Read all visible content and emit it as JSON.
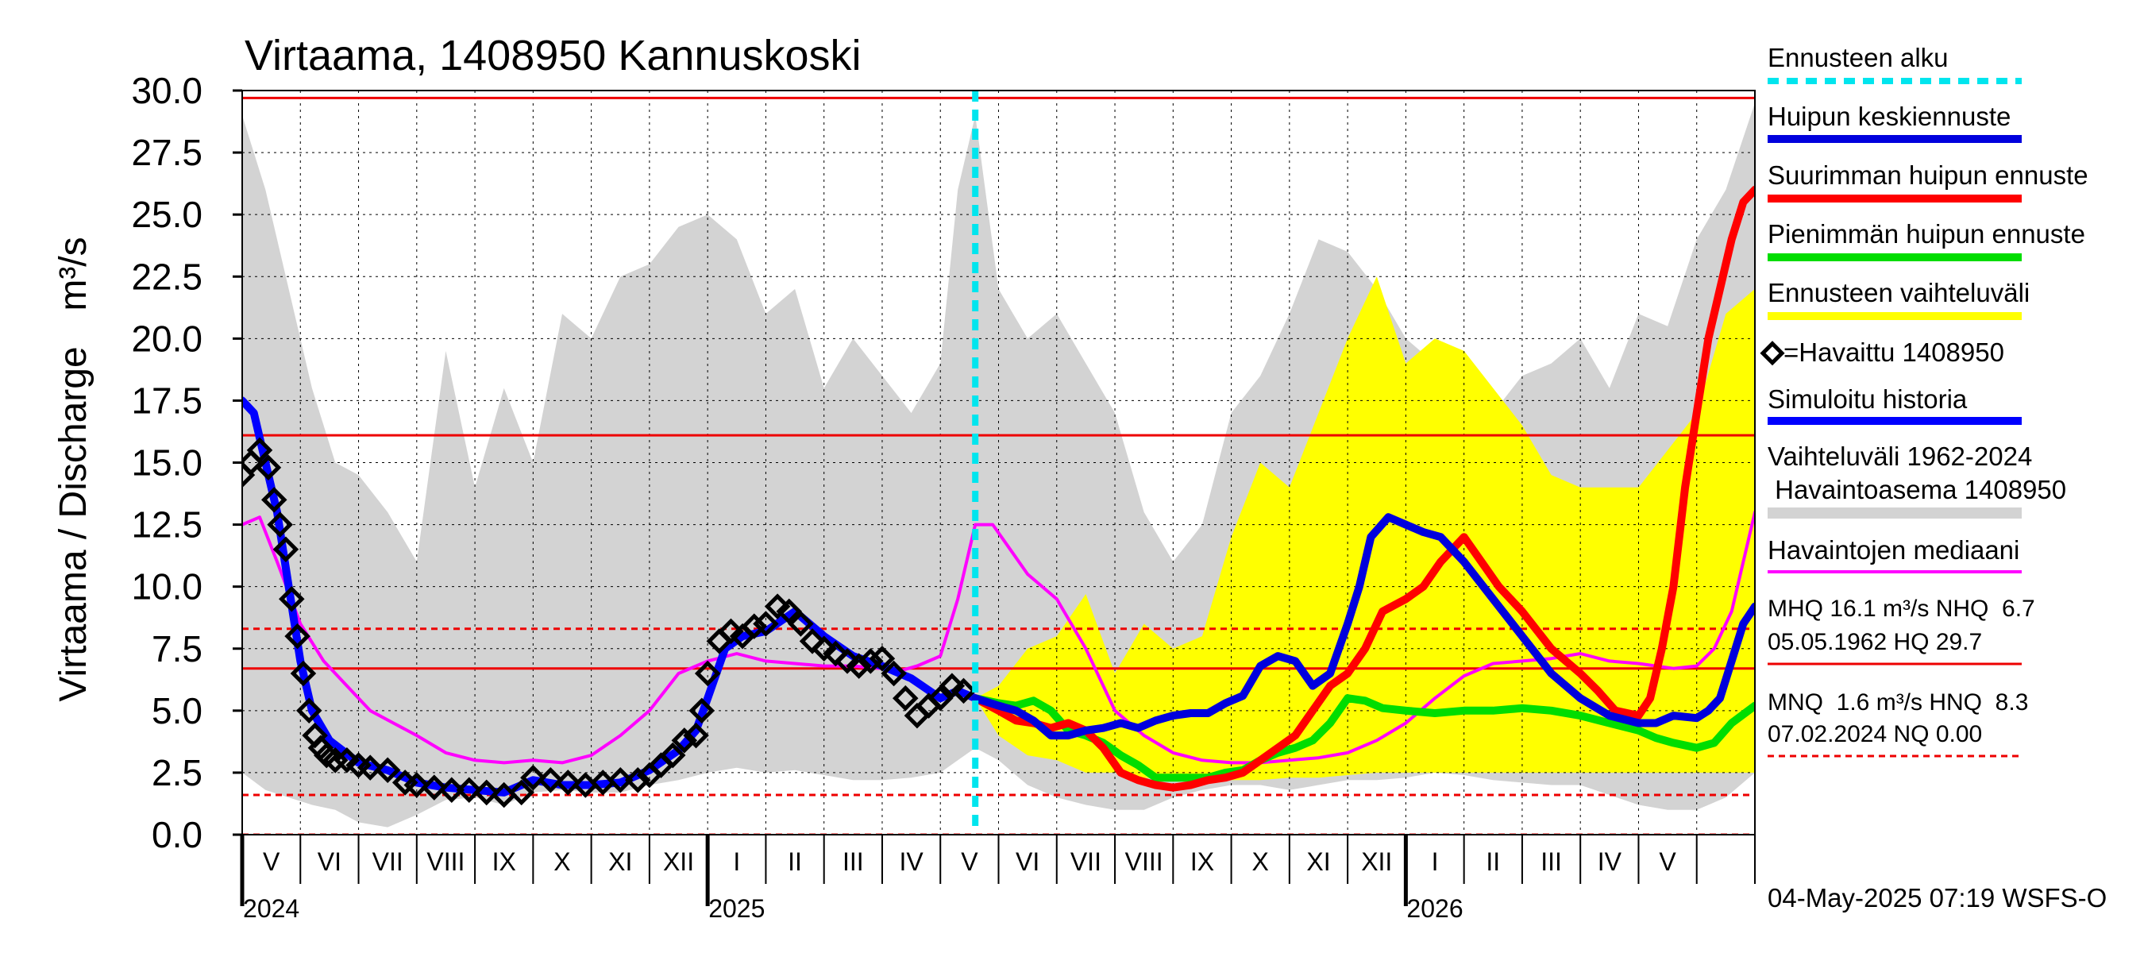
{
  "chart_data": {
    "type": "line",
    "title": "Virtaama, 1408950 Kannuskoski",
    "ylabel": "Virtaama / Discharge",
    "yunit": "m³/s",
    "ylim": [
      0,
      30
    ],
    "yticks": [
      "0.0",
      "2.5",
      "5.0",
      "7.5",
      "10.0",
      "12.5",
      "15.0",
      "17.5",
      "20.0",
      "22.5",
      "25.0",
      "27.5",
      "30.0"
    ],
    "xlim": [
      0,
      26.0
    ],
    "x_unit": "months since 2024-04-15",
    "month_labels": [
      {
        "label": "V",
        "x": 0.5
      },
      {
        "label": "VI",
        "x": 1.5
      },
      {
        "label": "VII",
        "x": 2.5
      },
      {
        "label": "VIII",
        "x": 3.5
      },
      {
        "label": "IX",
        "x": 4.5
      },
      {
        "label": "X",
        "x": 5.5
      },
      {
        "label": "XI",
        "x": 6.5
      },
      {
        "label": "XII",
        "x": 7.5
      },
      {
        "label": "I",
        "x": 8.5
      },
      {
        "label": "II",
        "x": 9.5
      },
      {
        "label": "III",
        "x": 10.5
      },
      {
        "label": "IV",
        "x": 11.5
      },
      {
        "label": "V",
        "x": 12.5
      },
      {
        "label": "VI",
        "x": 13.5
      },
      {
        "label": "VII",
        "x": 14.5
      },
      {
        "label": "VIII",
        "x": 15.5
      },
      {
        "label": "IX",
        "x": 16.5
      },
      {
        "label": "X",
        "x": 17.5
      },
      {
        "label": "XI",
        "x": 18.5
      },
      {
        "label": "XII",
        "x": 19.5
      },
      {
        "label": "I",
        "x": 20.5
      },
      {
        "label": "II",
        "x": 21.5
      },
      {
        "label": "III",
        "x": 22.5
      },
      {
        "label": "IV",
        "x": 23.5
      },
      {
        "label": "V",
        "x": 24.5
      }
    ],
    "year_labels": [
      {
        "label": "2024",
        "x": 0.5
      },
      {
        "label": "2025",
        "x": 8.5
      },
      {
        "label": "2026",
        "x": 20.5
      }
    ],
    "forecast_start_x": 12.6,
    "reference_lines": [
      {
        "name": "HQ",
        "value": 29.7,
        "style": "solid"
      },
      {
        "name": "MHQ",
        "value": 16.1,
        "style": "solid"
      },
      {
        "name": "NHQ",
        "value": 6.7,
        "style": "solid"
      },
      {
        "name": "HNQ",
        "value": 8.3,
        "style": "dashed"
      },
      {
        "name": "MNQ",
        "value": 1.6,
        "style": "dashed"
      },
      {
        "name": "NQ",
        "value": 0.0,
        "style": "dashed"
      }
    ],
    "series": [
      {
        "name": "Vaihteluväli 1962-2024 Havaintoasema 1408950",
        "kind": "band",
        "color": "#d3d3d3",
        "x": [
          0,
          0.4,
          0.8,
          1.2,
          1.6,
          2.0,
          2.5,
          3.0,
          3.5,
          4.0,
          4.5,
          5.0,
          5.5,
          6.0,
          6.5,
          7.0,
          7.5,
          8.0,
          8.5,
          9.0,
          9.5,
          10.0,
          10.5,
          11.0,
          11.5,
          12.0,
          12.3,
          12.6,
          13.0,
          13.5,
          14.0,
          14.5,
          15.0,
          15.5,
          16.0,
          16.5,
          17.0,
          17.5,
          18.0,
          18.5,
          19.0,
          19.5,
          20.0,
          20.5,
          21.0,
          21.5,
          22.0,
          22.5,
          23.0,
          23.5,
          24.0,
          24.5,
          25.0,
          25.5,
          26.0
        ],
        "upper": [
          29.0,
          26.0,
          22.0,
          18.0,
          15.0,
          14.5,
          13.0,
          11.0,
          19.5,
          14.0,
          18.0,
          15.0,
          21.0,
          20.0,
          22.5,
          23.0,
          24.5,
          25.0,
          24.0,
          21.0,
          22.0,
          18.0,
          20.0,
          18.5,
          17.0,
          19.0,
          26.0,
          29.0,
          22.0,
          20.0,
          21.0,
          19.0,
          17.0,
          13.0,
          11.0,
          12.5,
          17.0,
          18.5,
          21.0,
          24.0,
          23.5,
          22.0,
          20.0,
          19.0,
          18.0,
          17.0,
          18.5,
          19.0,
          20.0,
          18.0,
          21.0,
          20.5,
          24.0,
          26.0,
          29.5
        ],
        "lower": [
          2.5,
          1.8,
          1.5,
          1.2,
          1.0,
          0.5,
          0.3,
          0.8,
          1.4,
          1.5,
          1.2,
          1.7,
          1.8,
          1.7,
          1.7,
          2.0,
          2.2,
          2.5,
          2.7,
          2.5,
          2.6,
          2.4,
          2.2,
          2.2,
          2.3,
          2.5,
          3.0,
          3.5,
          3.0,
          2.0,
          1.5,
          1.2,
          1.0,
          1.0,
          1.5,
          1.8,
          2.0,
          2.0,
          1.8,
          2.0,
          2.2,
          2.2,
          2.3,
          2.5,
          2.4,
          2.2,
          2.1,
          2.0,
          2.0,
          1.6,
          1.2,
          1.0,
          1.0,
          1.5,
          2.5
        ]
      },
      {
        "name": "Ennusteen vaihteluväli",
        "kind": "band",
        "color": "#ffff00",
        "x": [
          12.6,
          13.0,
          13.5,
          14.0,
          14.5,
          15.0,
          15.5,
          16.0,
          16.5,
          17.0,
          17.5,
          18.0,
          18.5,
          19.0,
          19.5,
          20.0,
          20.5,
          21.0,
          21.5,
          22.0,
          22.5,
          23.0,
          23.5,
          24.0,
          24.5,
          25.0,
          25.5,
          26.0
        ],
        "upper": [
          5.5,
          6.0,
          7.5,
          8.0,
          9.7,
          6.5,
          8.5,
          7.5,
          8.0,
          12.0,
          15.0,
          14.0,
          17.0,
          20.0,
          22.5,
          19.0,
          20.0,
          19.5,
          18.0,
          16.5,
          14.5,
          14.0,
          14.0,
          14.0,
          15.5,
          17.0,
          21.0,
          22.0
        ],
        "lower": [
          5.5,
          4.0,
          3.2,
          3.0,
          2.5,
          2.5,
          2.3,
          2.2,
          2.2,
          2.2,
          2.2,
          2.3,
          2.3,
          2.4,
          2.5,
          2.5,
          2.5,
          2.5,
          2.5,
          2.5,
          2.5,
          2.5,
          2.5,
          2.5,
          2.5,
          2.5,
          2.5,
          2.5
        ]
      },
      {
        "name": "Havaintojen mediaani",
        "color": "#ff00ff",
        "x": [
          0,
          0.3,
          0.6,
          1.0,
          1.4,
          1.8,
          2.2,
          2.6,
          3.0,
          3.5,
          4.0,
          4.5,
          5.0,
          5.5,
          6.0,
          6.5,
          7.0,
          7.5,
          8.0,
          8.5,
          9.0,
          9.5,
          10.0,
          10.5,
          11.0,
          11.3,
          11.6,
          12.0,
          12.3,
          12.6,
          12.9,
          13.2,
          13.5,
          14.0,
          14.5,
          15.0,
          15.5,
          16.0,
          16.5,
          17.0,
          17.5,
          18.0,
          18.5,
          19.0,
          19.5,
          20.0,
          20.5,
          21.0,
          21.5,
          22.0,
          22.5,
          23.0,
          23.5,
          24.0,
          24.3,
          24.6,
          25.0,
          25.3,
          25.6,
          26.0
        ],
        "values": [
          12.5,
          12.8,
          11.0,
          8.5,
          7.0,
          6.0,
          5.0,
          4.5,
          4.0,
          3.3,
          3.0,
          2.9,
          3.0,
          2.9,
          3.2,
          4.0,
          5.0,
          6.5,
          7.0,
          7.3,
          7.0,
          6.9,
          6.8,
          6.8,
          6.7,
          6.6,
          6.8,
          7.2,
          9.5,
          12.5,
          12.5,
          11.5,
          10.5,
          9.5,
          7.5,
          5.0,
          4.0,
          3.3,
          3.0,
          2.9,
          2.9,
          3.0,
          3.1,
          3.3,
          3.8,
          4.5,
          5.5,
          6.4,
          6.9,
          7.0,
          7.1,
          7.3,
          7.0,
          6.9,
          6.8,
          6.7,
          6.8,
          7.5,
          9.0,
          13.0
        ]
      },
      {
        "name": "Simuloitu historia",
        "color": "#0000ff",
        "x": [
          0,
          0.2,
          0.4,
          0.6,
          0.8,
          1.0,
          1.2,
          1.5,
          2.0,
          2.5,
          3.0,
          3.5,
          4.0,
          4.5,
          5.0,
          5.5,
          6.0,
          6.5,
          7.0,
          7.5,
          7.8,
          8.0,
          8.3,
          8.6,
          9.0,
          9.5,
          10.0,
          10.5,
          11.0,
          11.5,
          12.0,
          12.3,
          12.6
        ],
        "values": [
          17.5,
          17.0,
          15.0,
          13.0,
          10.0,
          7.0,
          5.0,
          3.8,
          2.9,
          2.6,
          2.1,
          1.9,
          1.8,
          1.7,
          2.2,
          2.0,
          2.0,
          2.1,
          2.6,
          3.4,
          4.2,
          5.5,
          7.5,
          8.0,
          8.2,
          9.0,
          8.0,
          7.2,
          6.8,
          6.3,
          5.5,
          5.8,
          5.5
        ]
      },
      {
        "name": "Havaittu 1408950",
        "kind": "points",
        "color": "#000000",
        "x": [
          0,
          0.15,
          0.3,
          0.45,
          0.55,
          0.65,
          0.75,
          0.85,
          0.95,
          1.05,
          1.15,
          1.25,
          1.35,
          1.45,
          1.6,
          1.8,
          2.0,
          2.2,
          2.5,
          2.8,
          3.0,
          3.3,
          3.6,
          3.9,
          4.2,
          4.5,
          4.8,
          5.0,
          5.3,
          5.6,
          5.9,
          6.2,
          6.5,
          6.8,
          7.0,
          7.2,
          7.4,
          7.6,
          7.8,
          7.9,
          8.0,
          8.2,
          8.4,
          8.6,
          8.8,
          9.0,
          9.2,
          9.4,
          9.6,
          9.8,
          10.0,
          10.2,
          10.4,
          10.6,
          10.8,
          11.0,
          11.2,
          11.4,
          11.6,
          11.8,
          12.0,
          12.2,
          12.4
        ],
        "values": [
          14.5,
          15.0,
          15.5,
          14.8,
          13.5,
          12.5,
          11.5,
          9.5,
          8.0,
          6.5,
          5.0,
          4.0,
          3.5,
          3.2,
          3.0,
          3.0,
          2.8,
          2.7,
          2.6,
          2.1,
          2.0,
          1.9,
          1.8,
          1.8,
          1.7,
          1.6,
          1.7,
          2.3,
          2.2,
          2.1,
          2.0,
          2.1,
          2.2,
          2.2,
          2.4,
          2.8,
          3.2,
          3.8,
          4.0,
          5.0,
          6.5,
          7.8,
          8.2,
          8.0,
          8.4,
          8.5,
          9.2,
          9.0,
          8.5,
          7.8,
          7.5,
          7.3,
          7.0,
          6.8,
          7.0,
          7.1,
          6.5,
          5.5,
          4.8,
          5.2,
          5.5,
          6.0,
          5.8
        ]
      },
      {
        "name": "Pienimmän huipun ennuste",
        "color": "#00dd00",
        "x": [
          12.6,
          13.0,
          13.3,
          13.6,
          13.9,
          14.2,
          14.5,
          14.8,
          15.1,
          15.4,
          15.7,
          16.0,
          16.3,
          16.6,
          16.9,
          17.2,
          17.5,
          17.8,
          18.1,
          18.4,
          18.7,
          19.0,
          19.3,
          19.6,
          20.0,
          20.5,
          21.0,
          21.5,
          22.0,
          22.5,
          23.0,
          23.5,
          24.0,
          24.3,
          24.6,
          25.0,
          25.3,
          25.6,
          26.0
        ],
        "values": [
          5.5,
          5.3,
          5.2,
          5.4,
          5.0,
          4.2,
          4.0,
          3.7,
          3.2,
          2.8,
          2.3,
          2.3,
          2.3,
          2.3,
          2.5,
          2.6,
          3.0,
          3.3,
          3.5,
          3.8,
          4.5,
          5.5,
          5.4,
          5.1,
          5.0,
          4.9,
          5.0,
          5.0,
          5.1,
          5.0,
          4.8,
          4.5,
          4.2,
          3.9,
          3.7,
          3.5,
          3.7,
          4.5,
          5.2
        ]
      },
      {
        "name": "Suurimman huipun ennuste",
        "color": "#ff0000",
        "x": [
          12.6,
          13.0,
          13.3,
          13.6,
          13.9,
          14.2,
          14.5,
          14.8,
          15.1,
          15.4,
          15.7,
          16.0,
          16.3,
          16.6,
          16.9,
          17.2,
          17.5,
          17.8,
          18.1,
          18.4,
          18.7,
          19.0,
          19.3,
          19.6,
          20.0,
          20.3,
          20.6,
          21.0,
          21.3,
          21.6,
          22.0,
          22.5,
          23.0,
          23.3,
          23.6,
          24.0,
          24.2,
          24.4,
          24.6,
          24.8,
          25.0,
          25.2,
          25.4,
          25.6,
          25.8,
          26.0
        ],
        "values": [
          5.5,
          5.0,
          4.6,
          4.5,
          4.3,
          4.5,
          4.2,
          3.5,
          2.5,
          2.2,
          2.0,
          1.9,
          2.0,
          2.2,
          2.3,
          2.5,
          3.0,
          3.5,
          4.0,
          5.0,
          6.0,
          6.5,
          7.5,
          9.0,
          9.5,
          10.0,
          11.0,
          12.0,
          11.0,
          10.0,
          9.0,
          7.5,
          6.5,
          5.8,
          5.0,
          4.8,
          5.5,
          7.5,
          10.0,
          14.0,
          17.0,
          20.0,
          22.0,
          24.0,
          25.5,
          26.0
        ]
      },
      {
        "name": "Huipun keskiennuste",
        "color": "#0000dd",
        "x": [
          12.6,
          13.0,
          13.3,
          13.6,
          13.9,
          14.2,
          14.5,
          14.8,
          15.1,
          15.4,
          15.7,
          16.0,
          16.3,
          16.6,
          16.9,
          17.2,
          17.5,
          17.8,
          18.1,
          18.4,
          18.7,
          19.0,
          19.2,
          19.4,
          19.7,
          20.0,
          20.3,
          20.6,
          21.0,
          21.5,
          22.0,
          22.5,
          23.0,
          23.5,
          24.0,
          24.3,
          24.6,
          25.0,
          25.2,
          25.4,
          25.6,
          25.8,
          26.0
        ],
        "values": [
          5.5,
          5.2,
          5.0,
          4.6,
          4.0,
          4.0,
          4.2,
          4.3,
          4.5,
          4.3,
          4.6,
          4.8,
          4.9,
          4.9,
          5.3,
          5.6,
          6.8,
          7.2,
          7.0,
          6.0,
          6.5,
          8.5,
          10.0,
          12.0,
          12.8,
          12.5,
          12.2,
          12.0,
          11.0,
          9.5,
          8.0,
          6.5,
          5.5,
          4.8,
          4.5,
          4.5,
          4.8,
          4.7,
          5.0,
          5.5,
          7.0,
          8.5,
          9.2
        ]
      }
    ]
  },
  "legend": {
    "forecast_start": "Ennusteen alku",
    "mean_peak": "Huipun keskiennuste",
    "max_peak": "Suurimman huipun ennuste",
    "min_peak": "Pienimmän huipun ennuste",
    "forecast_range": "Ennusteen vaihteluväli",
    "observed": "=Havaittu 1408950",
    "simulated": "Simuloitu historia",
    "range_line1": "Vaihteluväli 1962-2024",
    "range_line2": " Havaintoasema 1408950",
    "median": "Havaintojen mediaani",
    "stats1_line1": "MHQ 16.1 m³/s NHQ  6.7",
    "stats1_line2": "05.05.1962 HQ 29.7",
    "stats2_line1": "MNQ  1.6 m³/s HNQ  8.3",
    "stats2_line2": "07.02.2024 NQ 0.00"
  },
  "footer": "04-May-2025 07:19 WSFS-O",
  "colors": {
    "band_gray": "#d3d3d3",
    "band_yellow": "#ffff00",
    "forecast_start": "#00e5ee",
    "ref_line": "#ee0000",
    "grid": "#000000"
  }
}
